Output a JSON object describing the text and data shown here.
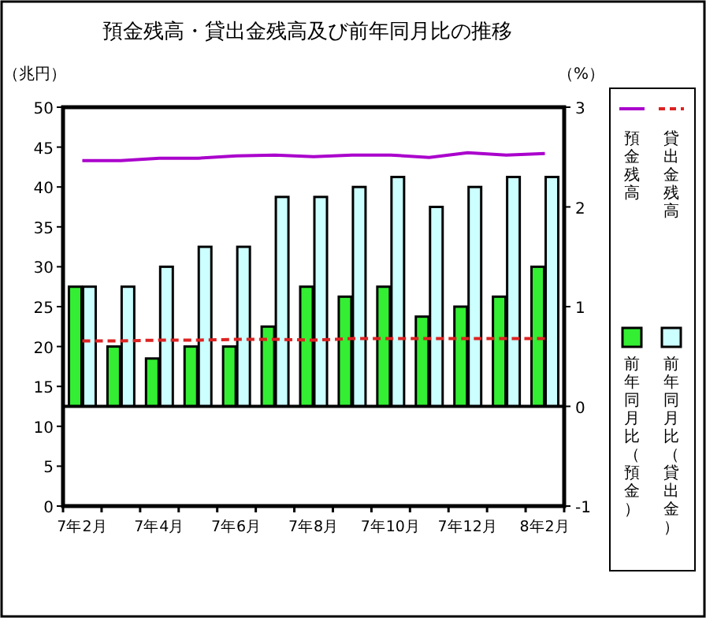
{
  "chart_data": {
    "type": "bar",
    "title": "預金残高・貸出金残高及び前年同月比の推移",
    "ylabel": "（兆円）",
    "y2label": "（%）",
    "categories": [
      "7年2月",
      null,
      "7年4月",
      null,
      "7年6月",
      null,
      "7年8月",
      null,
      "7年10月",
      null,
      "7年12月",
      null,
      "8年2月"
    ],
    "series": [
      {
        "name": "預金残高",
        "type": "line",
        "axis": "y",
        "color": "#aa00cc",
        "line_style": "solid",
        "values": [
          43.3,
          43.3,
          43.6,
          43.6,
          43.9,
          44.0,
          43.8,
          44.0,
          44.0,
          43.7,
          44.3,
          44.0,
          44.2
        ]
      },
      {
        "name": "貸出金残高",
        "type": "line",
        "axis": "y",
        "color": "#dd2222",
        "line_style": "dashed",
        "values": [
          20.7,
          20.7,
          20.8,
          20.8,
          20.9,
          20.9,
          20.8,
          21.0,
          21.0,
          21.0,
          21.0,
          21.0,
          21.0
        ]
      },
      {
        "name": "前年同月比（預金）",
        "type": "bar",
        "axis": "y2",
        "color": "#33ee33",
        "values": [
          1.2,
          0.6,
          0.48,
          0.6,
          0.6,
          0.8,
          1.2,
          1.1,
          1.2,
          0.9,
          1.0,
          1.1,
          1.4
        ]
      },
      {
        "name": "前年同月比（貸出金）",
        "type": "bar",
        "axis": "y2",
        "color": "#ccffff",
        "values": [
          1.2,
          1.2,
          1.4,
          1.6,
          1.6,
          2.1,
          2.1,
          2.2,
          2.3,
          2.0,
          2.2,
          2.3,
          2.3
        ]
      }
    ],
    "ylim": [
      0,
      50
    ],
    "yticks": [
      0,
      5,
      10,
      15,
      20,
      25,
      30,
      35,
      40,
      45,
      50
    ],
    "y2lim": [
      -1,
      3
    ],
    "y2ticks": [
      -1,
      0,
      1,
      2,
      3
    ],
    "ref_lines": [
      {
        "axis": "y2",
        "value": 0,
        "color": "#000000"
      }
    ],
    "legend": "right",
    "grid": false
  }
}
